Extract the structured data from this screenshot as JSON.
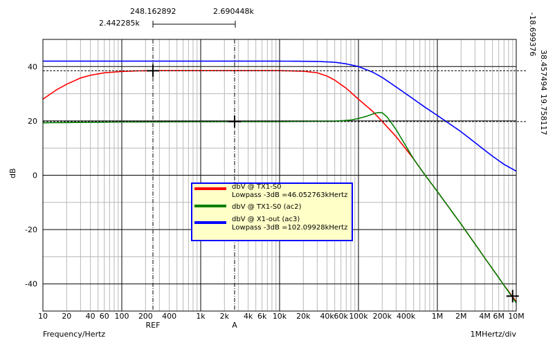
{
  "colors": {
    "background": "#ffffff",
    "grid": "#000000",
    "minor_grid": "#b8b8b8",
    "legend_fill": "#ffffc8",
    "legend_border": "#0000ff"
  },
  "top_readouts": {
    "ref_freq": "248.162892",
    "a_freq": "2.690448k",
    "ref_freq_left": "2.442285k"
  },
  "right_readouts": {
    "r1": "-18.699376",
    "r2": "38.457494",
    "r3": "19.758117"
  },
  "labels": {
    "ref": "REF",
    "a": "A",
    "x_axis": "Frequency/Hertz",
    "x_div": "1MHertz/div",
    "y_axis": "dB"
  },
  "legend": [
    {
      "line1": "dbV @ TX1-S0",
      "line2": "Lowpass -3dB =46.052763kHertz",
      "color": "#ff0000"
    },
    {
      "line1": "dbV @ TX1-S0 (ac2)",
      "line2": "",
      "color": "#008000"
    },
    {
      "line1": "dbV @ X1-out (ac3)",
      "line2": "Lowpass -3dB =102.09928kHertz",
      "color": "#0000ff"
    }
  ],
  "chart_data": {
    "type": "line",
    "xscale": "log",
    "xlim": [
      10,
      10000000
    ],
    "ylim": [
      -50,
      50
    ],
    "xticks": [
      10,
      20,
      40,
      60,
      100,
      200,
      400,
      1000,
      2000,
      4000,
      6000,
      10000,
      20000,
      40000,
      60000,
      100000,
      200000,
      400000,
      1000000,
      2000000,
      4000000,
      6000000,
      10000000
    ],
    "xtick_labels": [
      "10",
      "20",
      "40",
      "60",
      "100",
      "200",
      "400",
      "1k",
      "2k",
      "4k",
      "6k",
      "10k",
      "20k",
      "40k",
      "60k",
      "100k",
      "200k",
      "400k",
      "1M",
      "2M",
      "4M",
      "6M",
      "10M"
    ],
    "yticks": [
      -40,
      -20,
      0,
      20,
      40
    ],
    "ytick_labels": [
      "-40",
      "-20",
      "0",
      "20",
      "40"
    ],
    "xlabel": "Frequency/Hertz",
    "ylabel": "dB",
    "grid": true,
    "cursors": {
      "ref_x": 248.162892,
      "a_x": 2690.448,
      "ref_level": 38.457494,
      "a_level": 19.758117
    },
    "markers": [
      {
        "x": 248.16,
        "y": 38.46
      },
      {
        "x": 2690.45,
        "y": 19.76
      },
      {
        "x": 9000000,
        "y": -44.5
      }
    ],
    "series": [
      {
        "name": "dbV @ TX1-S0",
        "color": "#ff0000",
        "x": [
          10,
          15,
          20,
          30,
          40,
          60,
          100,
          150,
          200,
          300,
          500,
          1000,
          3000,
          10000,
          20000,
          30000,
          40000,
          50000,
          70000,
          100000,
          150000,
          200000,
          300000,
          500000,
          700000,
          1000000,
          2000000,
          4000000,
          7000000,
          10000000
        ],
        "y": [
          28,
          31.5,
          33.5,
          35.8,
          36.8,
          37.7,
          38.2,
          38.4,
          38.45,
          38.5,
          38.5,
          38.5,
          38.5,
          38.5,
          38.3,
          37.7,
          36.5,
          35,
          32,
          28,
          23.6,
          19.8,
          14.2,
          6,
          0,
          -6,
          -18,
          -30.5,
          -40.5,
          -46.5
        ]
      },
      {
        "name": "dbV @ TX1-S0 (ac2)",
        "color": "#008000",
        "x": [
          10,
          100,
          1000,
          10000,
          50000,
          80000,
          100000,
          130000,
          160000,
          180000,
          200000,
          230000,
          300000,
          400000,
          500000,
          700000,
          1000000,
          2000000,
          4000000,
          7000000,
          10000000
        ],
        "y": [
          19.3,
          19.6,
          19.7,
          19.75,
          19.9,
          20.3,
          20.9,
          21.8,
          22.8,
          23.1,
          23,
          21.5,
          16.8,
          10.7,
          6,
          0,
          -6,
          -18,
          -30.5,
          -40.5,
          -47
        ]
      },
      {
        "name": "dbV @ X1-out (ac3)",
        "color": "#0000ff",
        "x": [
          10,
          100,
          1000,
          10000,
          30000,
          50000,
          70000,
          100000,
          150000,
          200000,
          300000,
          500000,
          700000,
          1000000,
          1500000,
          2000000,
          3000000,
          5000000,
          7000000,
          10000000
        ],
        "y": [
          42,
          42,
          42,
          42,
          41.9,
          41.6,
          41,
          40,
          38,
          36,
          32.5,
          28,
          25,
          22,
          18.5,
          16,
          12,
          7,
          4,
          1.5
        ]
      }
    ]
  }
}
